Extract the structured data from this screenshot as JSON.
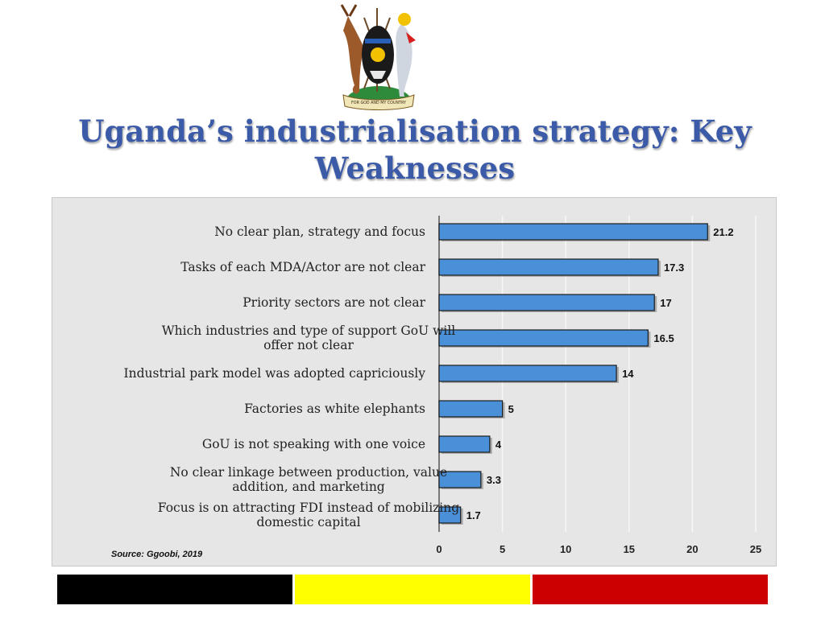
{
  "title": "Uganda’s industrialisation strategy: Key Weaknesses",
  "coat_of_arms": {
    "motto": "FOR GOD AND MY COUNTRY"
  },
  "source": "Source: Ggoobi, 2019",
  "flag_colors": {
    "black": "#000000",
    "yellow": "#ffff00",
    "red": "#cc0000"
  },
  "bar_color": "#4a90d9",
  "chart_data": {
    "type": "bar",
    "orientation": "horizontal",
    "categories": [
      "No clear plan, strategy and focus",
      "Tasks of each MDA/Actor are not clear",
      "Priority sectors are not clear",
      "Which industries and type of support GoU will offer not clear",
      "Industrial park model was adopted capriciously",
      "Factories as white elephants",
      "GoU is not speaking with one voice",
      "No clear linkage between production, value addition, and marketing",
      "Focus is on attracting FDI instead of mobilizing domestic capital"
    ],
    "category_lines": [
      [
        "No clear plan, strategy and focus"
      ],
      [
        "Tasks of each MDA/Actor are not clear"
      ],
      [
        "Priority sectors are not clear"
      ],
      [
        "Which industries and type of support GoU will",
        "offer not clear"
      ],
      [
        "Industrial park model was adopted capriciously"
      ],
      [
        "Factories as white elephants"
      ],
      [
        "GoU is not speaking with one voice"
      ],
      [
        "No clear linkage between production, value",
        "addition, and marketing"
      ],
      [
        "Focus is on attracting FDI instead of mobilizing",
        "domestic capital"
      ]
    ],
    "values": [
      21.2,
      17.3,
      17,
      16.5,
      14,
      5,
      4,
      3.3,
      1.7
    ],
    "value_labels": [
      "21.2",
      "17.3",
      "17",
      "16.5",
      "14",
      "5",
      "4",
      "3.3",
      "1.7"
    ],
    "xlim": [
      0,
      25
    ],
    "xticks": [
      0,
      5,
      10,
      15,
      20,
      25
    ],
    "grid": true,
    "title": "",
    "xlabel": "",
    "ylabel": ""
  }
}
